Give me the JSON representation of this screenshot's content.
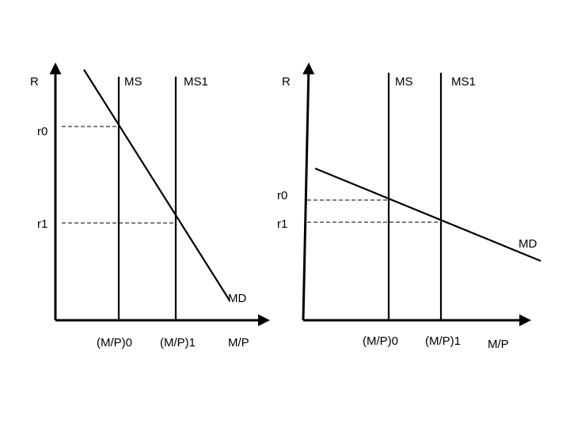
{
  "left_graph": {
    "y_axis_label": "R",
    "x_axis_label": "M/P",
    "ms_label": "MS",
    "ms1_label": "MS1",
    "md_label": "MD",
    "r0_label": "r0",
    "r1_label": "r1",
    "mp0_label": "(M/P)0",
    "mp1_label": "(M/P)1"
  },
  "right_graph": {
    "y_axis_label": "R",
    "x_axis_label": "M/P",
    "ms_label": "MS",
    "ms1_label": "MS1",
    "md_label": "MD",
    "r0_label": "r0",
    "r1_label": "r1",
    "mp0_label": "(M/P)0",
    "mp1_label": "(M/P)1"
  }
}
